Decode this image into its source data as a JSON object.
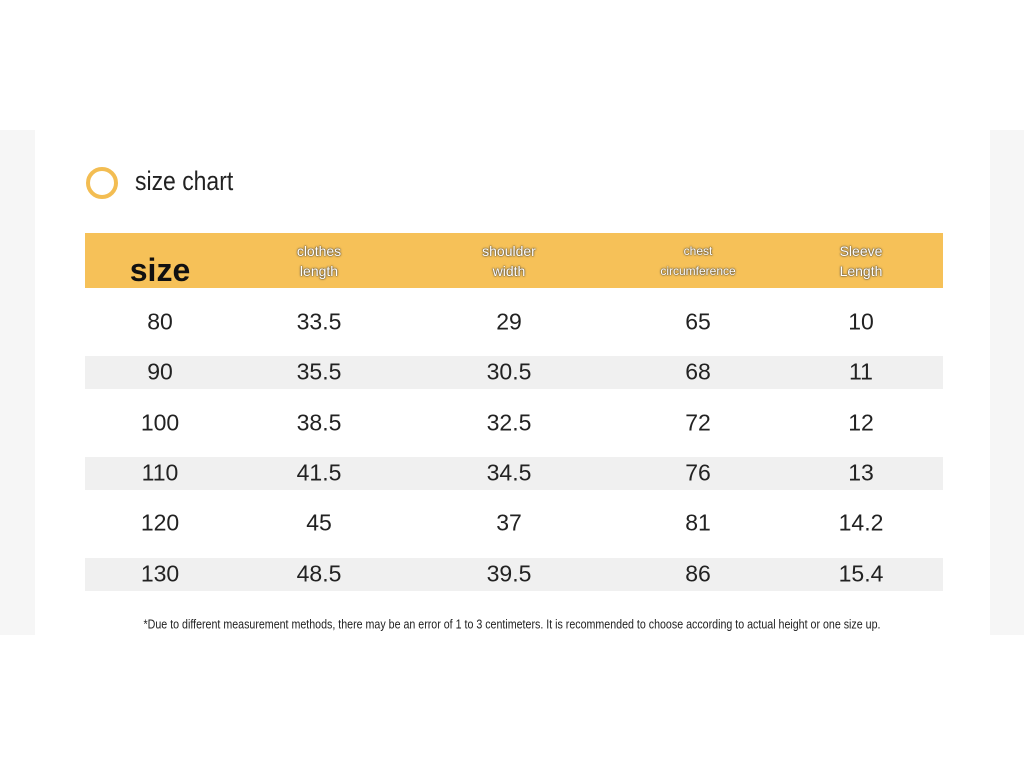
{
  "title": "size chart",
  "table": {
    "header": [
      "size",
      "clothes length",
      "shoulder width",
      "chest circumference",
      "Sleeve Length"
    ],
    "rows": [
      [
        80,
        33.5,
        29,
        65,
        10
      ],
      [
        90,
        35.5,
        30.5,
        68,
        11
      ],
      [
        100,
        38.5,
        32.5,
        72,
        12
      ],
      [
        110,
        41.5,
        34.5,
        76,
        13
      ],
      [
        120,
        45,
        37,
        81,
        14.2
      ],
      [
        130,
        48.5,
        39.5,
        86,
        15.4
      ]
    ]
  },
  "note": "*Due to different measurement methods, there may be an error of 1 to 3 centimeters. It is recommended to choose according to actual height or one size up."
}
